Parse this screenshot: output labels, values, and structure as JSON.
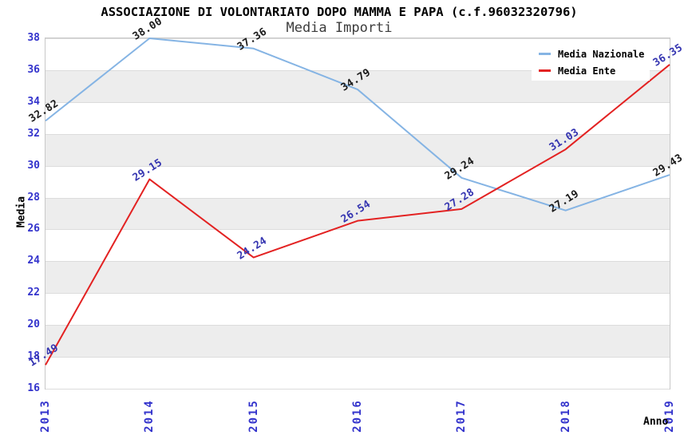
{
  "chart_data": {
    "type": "line",
    "title": "ASSOCIAZIONE DI VOLONTARIATO DOPO MAMMA E PAPA (c.f.96032320796)",
    "subtitle": "Media Importi",
    "xlabel": "Anno",
    "ylabel": "Media",
    "categories": [
      "2013",
      "2014",
      "2015",
      "2016",
      "2017",
      "2018",
      "2019"
    ],
    "series": [
      {
        "name": "Media Nazionale",
        "color": "#85b4e4",
        "label_color": "#1a1a1a",
        "values": [
          32.82,
          38.0,
          37.36,
          34.79,
          29.24,
          27.19,
          29.43
        ],
        "labels": [
          "32.82",
          "38.00",
          "37.36",
          "34.79",
          "29.24",
          "27.19",
          "29.43"
        ]
      },
      {
        "name": "Media Ente",
        "color": "#e32222",
        "label_color": "#3434b0",
        "values": [
          17.49,
          29.15,
          24.24,
          26.54,
          27.28,
          31.03,
          36.35
        ],
        "labels": [
          "17.49",
          "29.15",
          "24.24",
          "26.54",
          "27.28",
          "31.03",
          "36.35"
        ]
      }
    ],
    "ylim": [
      16,
      38
    ],
    "y_ticks": [
      16,
      18,
      20,
      22,
      24,
      26,
      28,
      30,
      32,
      34,
      36,
      38
    ],
    "grid": "horizontal alternating bands",
    "legend_position": "top-right",
    "axis_tick_color": "#3333cc",
    "band_color": "#ededed",
    "border_color": "#c8c8c8"
  }
}
